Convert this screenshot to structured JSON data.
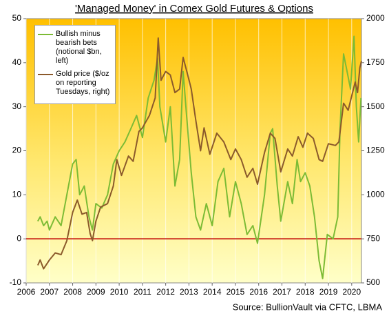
{
  "chart_data": {
    "type": "line",
    "title": "'Managed Money' in Comex Gold Futures & Options",
    "source": "Source: BullionVault via CFTC, LBMA",
    "legend": "upper left",
    "grid": "x",
    "xlim": [
      2006,
      2020.42
    ],
    "xticks": [
      2006,
      2007,
      2008,
      2009,
      2010,
      2011,
      2012,
      2013,
      2014,
      2015,
      2016,
      2017,
      2018,
      2019,
      2020
    ],
    "ylim": [
      -10,
      50
    ],
    "yticks": [
      -10,
      0,
      10,
      20,
      30,
      40,
      50
    ],
    "y2lim": [
      500,
      2000
    ],
    "y2ticks": [
      500,
      750,
      1000,
      1250,
      1500,
      1750,
      2000
    ],
    "zero_line_color": "#c00000",
    "series": [
      {
        "name": "Bullish minus bearish bets (notional $bn, left)",
        "color": "#7cbb35",
        "axis": "y",
        "x": [
          2006.5,
          2006.6,
          2006.75,
          2006.9,
          2007.0,
          2007.25,
          2007.5,
          2007.75,
          2008.0,
          2008.15,
          2008.3,
          2008.5,
          2008.7,
          2008.85,
          2009.0,
          2009.25,
          2009.5,
          2009.75,
          2010.0,
          2010.25,
          2010.5,
          2010.75,
          2011.0,
          2011.25,
          2011.5,
          2011.65,
          2011.75,
          2012.0,
          2012.2,
          2012.4,
          2012.6,
          2012.75,
          2012.9,
          2013.1,
          2013.3,
          2013.5,
          2013.75,
          2014.0,
          2014.25,
          2014.5,
          2014.75,
          2015.0,
          2015.25,
          2015.5,
          2015.75,
          2015.95,
          2016.25,
          2016.5,
          2016.6,
          2016.8,
          2016.95,
          2017.25,
          2017.45,
          2017.65,
          2017.8,
          2018.0,
          2018.2,
          2018.4,
          2018.6,
          2018.75,
          2018.95,
          2019.2,
          2019.4,
          2019.5,
          2019.65,
          2019.8,
          2019.95,
          2020.1,
          2020.2,
          2020.3,
          2020.4
        ],
        "values": [
          4,
          5,
          3,
          4,
          2,
          5,
          3,
          10,
          17,
          18,
          10,
          12,
          5,
          2,
          8,
          7,
          10,
          17,
          20,
          22,
          25,
          28,
          23,
          32,
          36,
          41,
          30,
          22,
          30,
          12,
          18,
          38,
          28,
          15,
          5,
          2,
          8,
          3,
          13,
          16,
          5,
          13,
          8,
          1,
          3,
          -1,
          10,
          24,
          25,
          12,
          4,
          13,
          8,
          18,
          13,
          15,
          12,
          5,
          -5,
          -9,
          1,
          0,
          5,
          25,
          42,
          38,
          34,
          46,
          30,
          22,
          32
        ]
      },
      {
        "name": "Gold price ($/oz on reporting Tuesdays, right)",
        "color": "#8b5a2b",
        "axis": "y2",
        "x": [
          2006.5,
          2006.6,
          2006.75,
          2007.0,
          2007.25,
          2007.5,
          2007.75,
          2008.0,
          2008.2,
          2008.4,
          2008.6,
          2008.75,
          2008.85,
          2009.0,
          2009.2,
          2009.5,
          2009.75,
          2009.9,
          2010.1,
          2010.4,
          2010.6,
          2010.85,
          2011.0,
          2011.3,
          2011.55,
          2011.68,
          2011.8,
          2012.0,
          2012.2,
          2012.4,
          2012.6,
          2012.75,
          2012.95,
          2013.1,
          2013.3,
          2013.5,
          2013.65,
          2013.9,
          2014.2,
          2014.5,
          2014.8,
          2015.0,
          2015.25,
          2015.5,
          2015.75,
          2015.95,
          2016.25,
          2016.5,
          2016.7,
          2016.95,
          2017.25,
          2017.45,
          2017.7,
          2017.9,
          2018.1,
          2018.35,
          2018.6,
          2018.75,
          2019.0,
          2019.3,
          2019.45,
          2019.65,
          2019.85,
          2020.0,
          2020.15,
          2020.25,
          2020.35,
          2020.42
        ],
        "values": [
          600,
          630,
          580,
          630,
          670,
          660,
          740,
          900,
          970,
          890,
          900,
          780,
          740,
          850,
          930,
          950,
          1050,
          1200,
          1110,
          1220,
          1190,
          1360,
          1380,
          1450,
          1550,
          1890,
          1650,
          1700,
          1680,
          1580,
          1600,
          1780,
          1680,
          1600,
          1420,
          1250,
          1380,
          1230,
          1350,
          1300,
          1200,
          1260,
          1200,
          1100,
          1150,
          1060,
          1240,
          1350,
          1320,
          1130,
          1260,
          1220,
          1330,
          1270,
          1350,
          1320,
          1200,
          1190,
          1290,
          1280,
          1300,
          1520,
          1480,
          1560,
          1640,
          1580,
          1720,
          1760
        ]
      }
    ]
  }
}
